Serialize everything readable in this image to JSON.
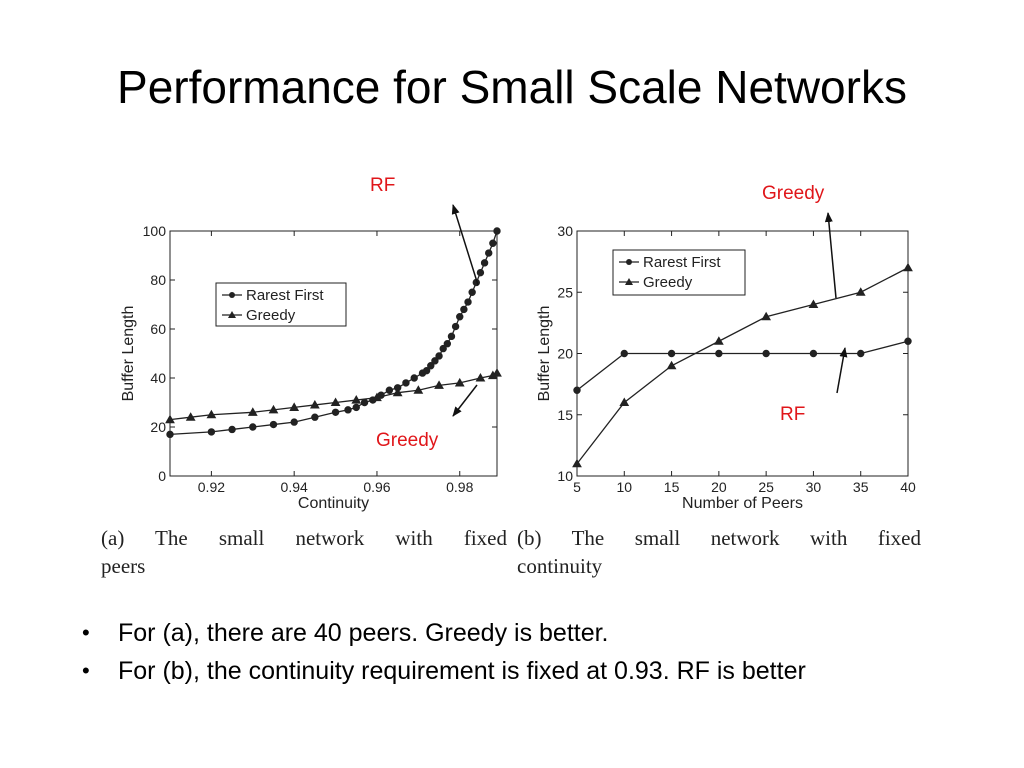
{
  "slide": {
    "title": "Performance for Small Scale Networks",
    "bullets": [
      "For (a), there are 40 peers. Greedy is better.",
      "For (b), the continuity requirement is fixed at 0.93. RF is better"
    ]
  },
  "captions": {
    "a_line1": "(a) The small network with fixed",
    "a_line2": "peers",
    "b_line1": "(b) The small network with fixed",
    "b_line2": "continuity"
  },
  "annotations": {
    "a_rf": "RF",
    "a_greedy": "Greedy",
    "b_greedy": "Greedy",
    "b_rf": "RF"
  },
  "colors": {
    "annotation": "#e0161a",
    "line": "#222222"
  },
  "chart_data": [
    {
      "type": "line",
      "xlabel": "Continuity",
      "ylabel": "Buffer Length",
      "xlim": [
        0.91,
        0.989
      ],
      "ylim": [
        0,
        100
      ],
      "xticks": [
        0.92,
        0.94,
        0.96,
        0.98
      ],
      "xtick_labels": [
        "0.92",
        "0.94",
        "0.96",
        "0.98"
      ],
      "yticks": [
        0,
        20,
        40,
        60,
        80,
        100
      ],
      "ytick_labels": [
        "0",
        "20",
        "40",
        "60",
        "80",
        "100"
      ],
      "legend_position": "upper-left",
      "series": [
        {
          "name": "Rarest First",
          "marker": "circle",
          "x": [
            0.91,
            0.92,
            0.925,
            0.93,
            0.935,
            0.94,
            0.945,
            0.95,
            0.953,
            0.955,
            0.957,
            0.959,
            0.961,
            0.963,
            0.965,
            0.967,
            0.969,
            0.971,
            0.972,
            0.973,
            0.974,
            0.975,
            0.976,
            0.977,
            0.978,
            0.979,
            0.98,
            0.981,
            0.982,
            0.983,
            0.984,
            0.985,
            0.986,
            0.987,
            0.988,
            0.989
          ],
          "y": [
            17,
            18,
            19,
            20,
            21,
            22,
            24,
            26,
            27,
            28,
            30,
            31,
            33,
            35,
            36,
            38,
            40,
            42,
            43,
            45,
            47,
            49,
            52,
            54,
            57,
            61,
            65,
            68,
            71,
            75,
            79,
            83,
            87,
            91,
            95,
            100
          ]
        },
        {
          "name": "Greedy",
          "marker": "triangle",
          "x": [
            0.91,
            0.915,
            0.92,
            0.93,
            0.935,
            0.94,
            0.945,
            0.95,
            0.955,
            0.96,
            0.965,
            0.97,
            0.975,
            0.98,
            0.985,
            0.988,
            0.989
          ],
          "y": [
            23,
            24,
            25,
            26,
            27,
            28,
            29,
            30,
            31,
            32,
            34,
            35,
            37,
            38,
            40,
            41,
            42
          ]
        }
      ]
    },
    {
      "type": "line",
      "xlabel": "Number of Peers",
      "ylabel": "Buffer Length",
      "xlim": [
        5,
        40
      ],
      "ylim": [
        10,
        30
      ],
      "xticks": [
        5,
        10,
        15,
        20,
        25,
        30,
        35,
        40
      ],
      "xtick_labels": [
        "5",
        "10",
        "15",
        "20",
        "25",
        "30",
        "35",
        "40"
      ],
      "yticks": [
        10,
        15,
        20,
        25,
        30
      ],
      "ytick_labels": [
        "10",
        "15",
        "20",
        "25",
        "30"
      ],
      "legend_position": "upper-left",
      "series": [
        {
          "name": "Rarest First",
          "marker": "circle",
          "x": [
            5,
            10,
            15,
            20,
            25,
            30,
            35,
            40
          ],
          "y": [
            17,
            20,
            20,
            20,
            20,
            20,
            20,
            21
          ]
        },
        {
          "name": "Greedy",
          "marker": "triangle",
          "x": [
            5,
            10,
            15,
            20,
            25,
            30,
            35,
            40
          ],
          "y": [
            11,
            16,
            19,
            21,
            23,
            24,
            25,
            27
          ]
        }
      ]
    }
  ]
}
